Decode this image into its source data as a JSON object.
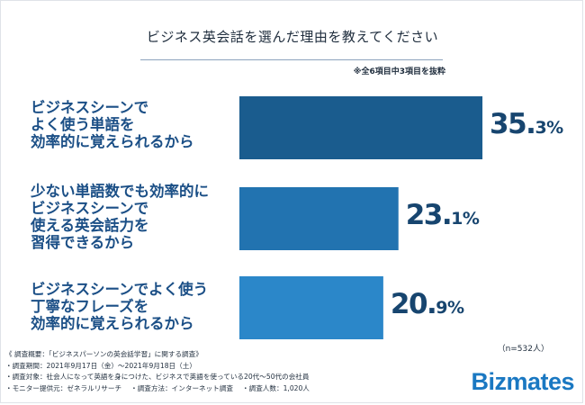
{
  "title": "ビジネス英会話を選んだ理由を教えてください",
  "note": "※全6項目中3項目を抜粋",
  "sample_note": "（n=532人）",
  "survey": {
    "heading": "《 調査概要：「ビジネスパーソンの英会話学習」に関する調査》",
    "period": "・調査期間：2021年9月17日（金）〜2021年9月18日（土）",
    "target": "・調査対象：社会人になって英語を身につけた、ビジネスで英語を使っている20代〜50代の会社員",
    "details": "・モニター提供元：ゼネラルリサーチ　 ・調査方法：インターネット調査　 ・調査人数：1,020人"
  },
  "logo": "Bizmates",
  "chart_data": {
    "type": "bar",
    "orientation": "horizontal",
    "categories": [
      [
        "ビジネスシーンで",
        "よく使う単語を",
        "効率的に覚えられるから"
      ],
      [
        "少ない単語数でも効率的に",
        "ビジネスシーンで",
        "使える英会話力を",
        "習得できるから"
      ],
      [
        "ビジネスシーンでよく使う",
        "丁寧なフレーズを",
        "効率的に覚えられるから"
      ]
    ],
    "values": [
      35.3,
      23.1,
      20.9
    ],
    "value_labels": [
      {
        "big": "35.",
        "small": "3%"
      },
      {
        "big": "23.",
        "small": "1%"
      },
      {
        "big": "20.",
        "small": "9%"
      }
    ],
    "unit": "%",
    "xlim": [
      0,
      100
    ],
    "colors": [
      "#1a5c8e",
      "#2273b0",
      "#2b87c9"
    ],
    "grid": false,
    "legend": "none"
  }
}
